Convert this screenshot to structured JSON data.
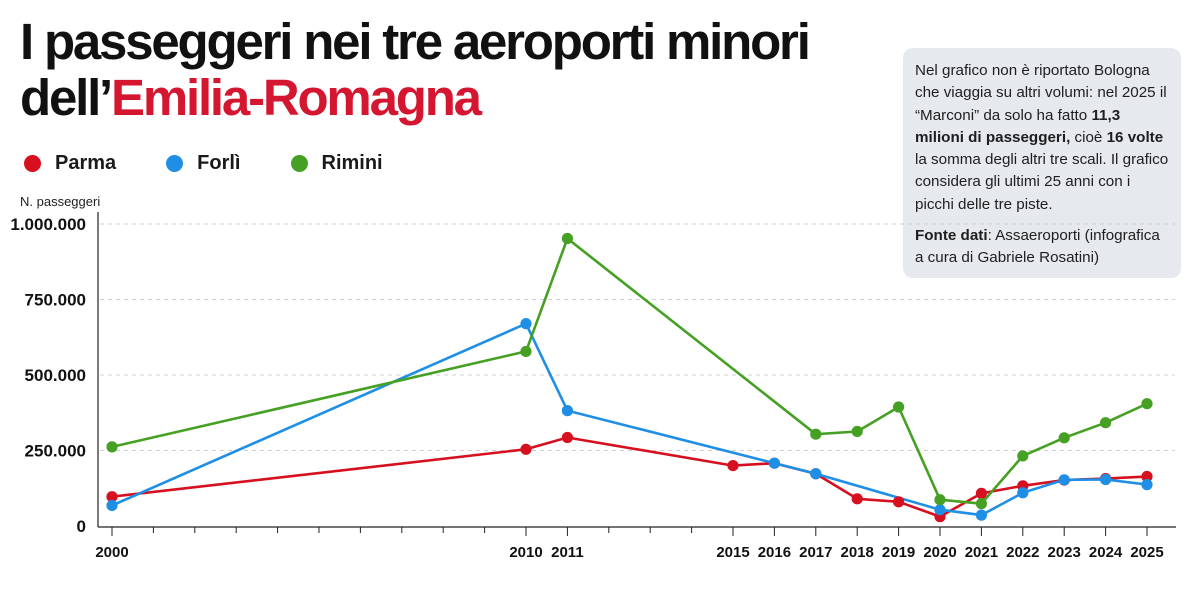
{
  "title": {
    "line1": "I passeggeri nei tre aeroporti minori",
    "line2_prefix": "dell’",
    "line2_accent": "Emilia-Romagna"
  },
  "legend": [
    {
      "label": "Parma",
      "color": "#d6101e"
    },
    {
      "label": "Forlì",
      "color": "#1f8fe6"
    },
    {
      "label": "Rimini",
      "color": "#46a023"
    }
  ],
  "info": {
    "p1": [
      {
        "text": "Nel grafico non è riportato Bologna che viaggia su altri volumi: nel 2025 il “Marconi” da solo ha fatto ",
        "bold": false
      },
      {
        "text": "11,3 milioni di passeggeri,",
        "bold": true
      },
      {
        "text": " cioè ",
        "bold": false
      },
      {
        "text": "16 volte",
        "bold": true
      },
      {
        "text": " la somma degli altri tre scali. Il grafico considera gli ultimi 25 anni con i picchi delle tre piste.",
        "bold": false
      }
    ],
    "source_label": "Fonte dati",
    "source_text": ": Assaeroporti (infografica a cura di Gabriele Rosatini)"
  },
  "chart_data": {
    "type": "line",
    "ylabel": "N. passeggeri",
    "ylim": [
      0,
      1000000
    ],
    "yticks": [
      0,
      250000,
      500000,
      750000,
      1000000
    ],
    "ytick_labels": [
      "0",
      "250.000",
      "500.000",
      "750.000",
      "1.000.000"
    ],
    "grid": true,
    "series": [
      {
        "name": "Parma",
        "color": "#d6101e",
        "x": [
          2000,
          2010,
          2011,
          2015,
          2016,
          2017,
          2018,
          2019,
          2020,
          2021,
          2022,
          2023,
          2024,
          2025
        ],
        "y": [
          97000,
          254000,
          293000,
          200000,
          208000,
          173000,
          90000,
          80000,
          31000,
          108000,
          133000,
          152000,
          157000,
          164000
        ]
      },
      {
        "name": "Forlì",
        "color": "#1f8fe6",
        "x": [
          2000,
          2010,
          2011,
          2016,
          2017,
          2020,
          2021,
          2022,
          2023,
          2024,
          2025
        ],
        "y": [
          68000,
          670000,
          382000,
          208000,
          173000,
          54000,
          36000,
          110000,
          153000,
          154000,
          137000
        ]
      },
      {
        "name": "Rimini",
        "color": "#46a023",
        "x": [
          2000,
          2010,
          2011,
          2017,
          2018,
          2019,
          2020,
          2021,
          2022,
          2023,
          2024,
          2025
        ],
        "y": [
          262000,
          578000,
          952000,
          304000,
          313000,
          394000,
          87000,
          74000,
          232000,
          292000,
          342000,
          405000
        ]
      }
    ]
  }
}
